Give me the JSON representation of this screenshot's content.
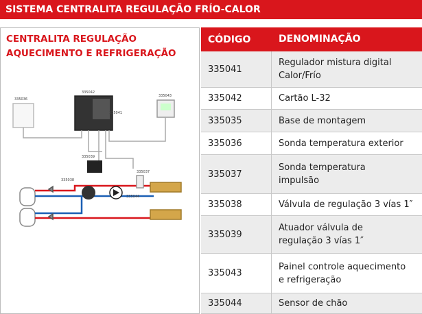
{
  "header": {
    "title": "SISTEMA CENTRALITA REGULAÇÃO FRÍO-CALOR"
  },
  "panel": {
    "title_lines": [
      "CENTRALITA REGULAÇÃO",
      "AQUECIMENTO E REFRIGERAÇÃO"
    ]
  },
  "diagram": {
    "labels": [
      "335036",
      "335042",
      "335041",
      "335043",
      "335039",
      "335038",
      "335037",
      "335044"
    ]
  },
  "table": {
    "columns": [
      "CÓDIGO",
      "DENOMINAÇÃO"
    ],
    "rows": [
      {
        "code": "335041",
        "name_lines": [
          "Regulador mistura digital",
          "Calor/Frío"
        ]
      },
      {
        "code": "335042",
        "name_lines": [
          "Cartão  L-32"
        ]
      },
      {
        "code": "335035",
        "name_lines": [
          "Base de montagem"
        ]
      },
      {
        "code": "335036",
        "name_lines": [
          "Sonda temperatura exterior"
        ]
      },
      {
        "code": "335037",
        "name_lines": [
          "Sonda temperatura",
          "impulsão"
        ]
      },
      {
        "code": "335038",
        "name_lines": [
          "Válvula de regulação 3 vías 1″"
        ]
      },
      {
        "code": "335039",
        "name_lines": [
          "Atuador válvula de",
          "regulação 3 vías 1″"
        ]
      },
      {
        "code": "335043",
        "name_lines": [
          "Painel controle aquecimento",
          "e refrigeração"
        ]
      },
      {
        "code": "335044",
        "name_lines": [
          "Sensor de chão"
        ]
      }
    ]
  }
}
